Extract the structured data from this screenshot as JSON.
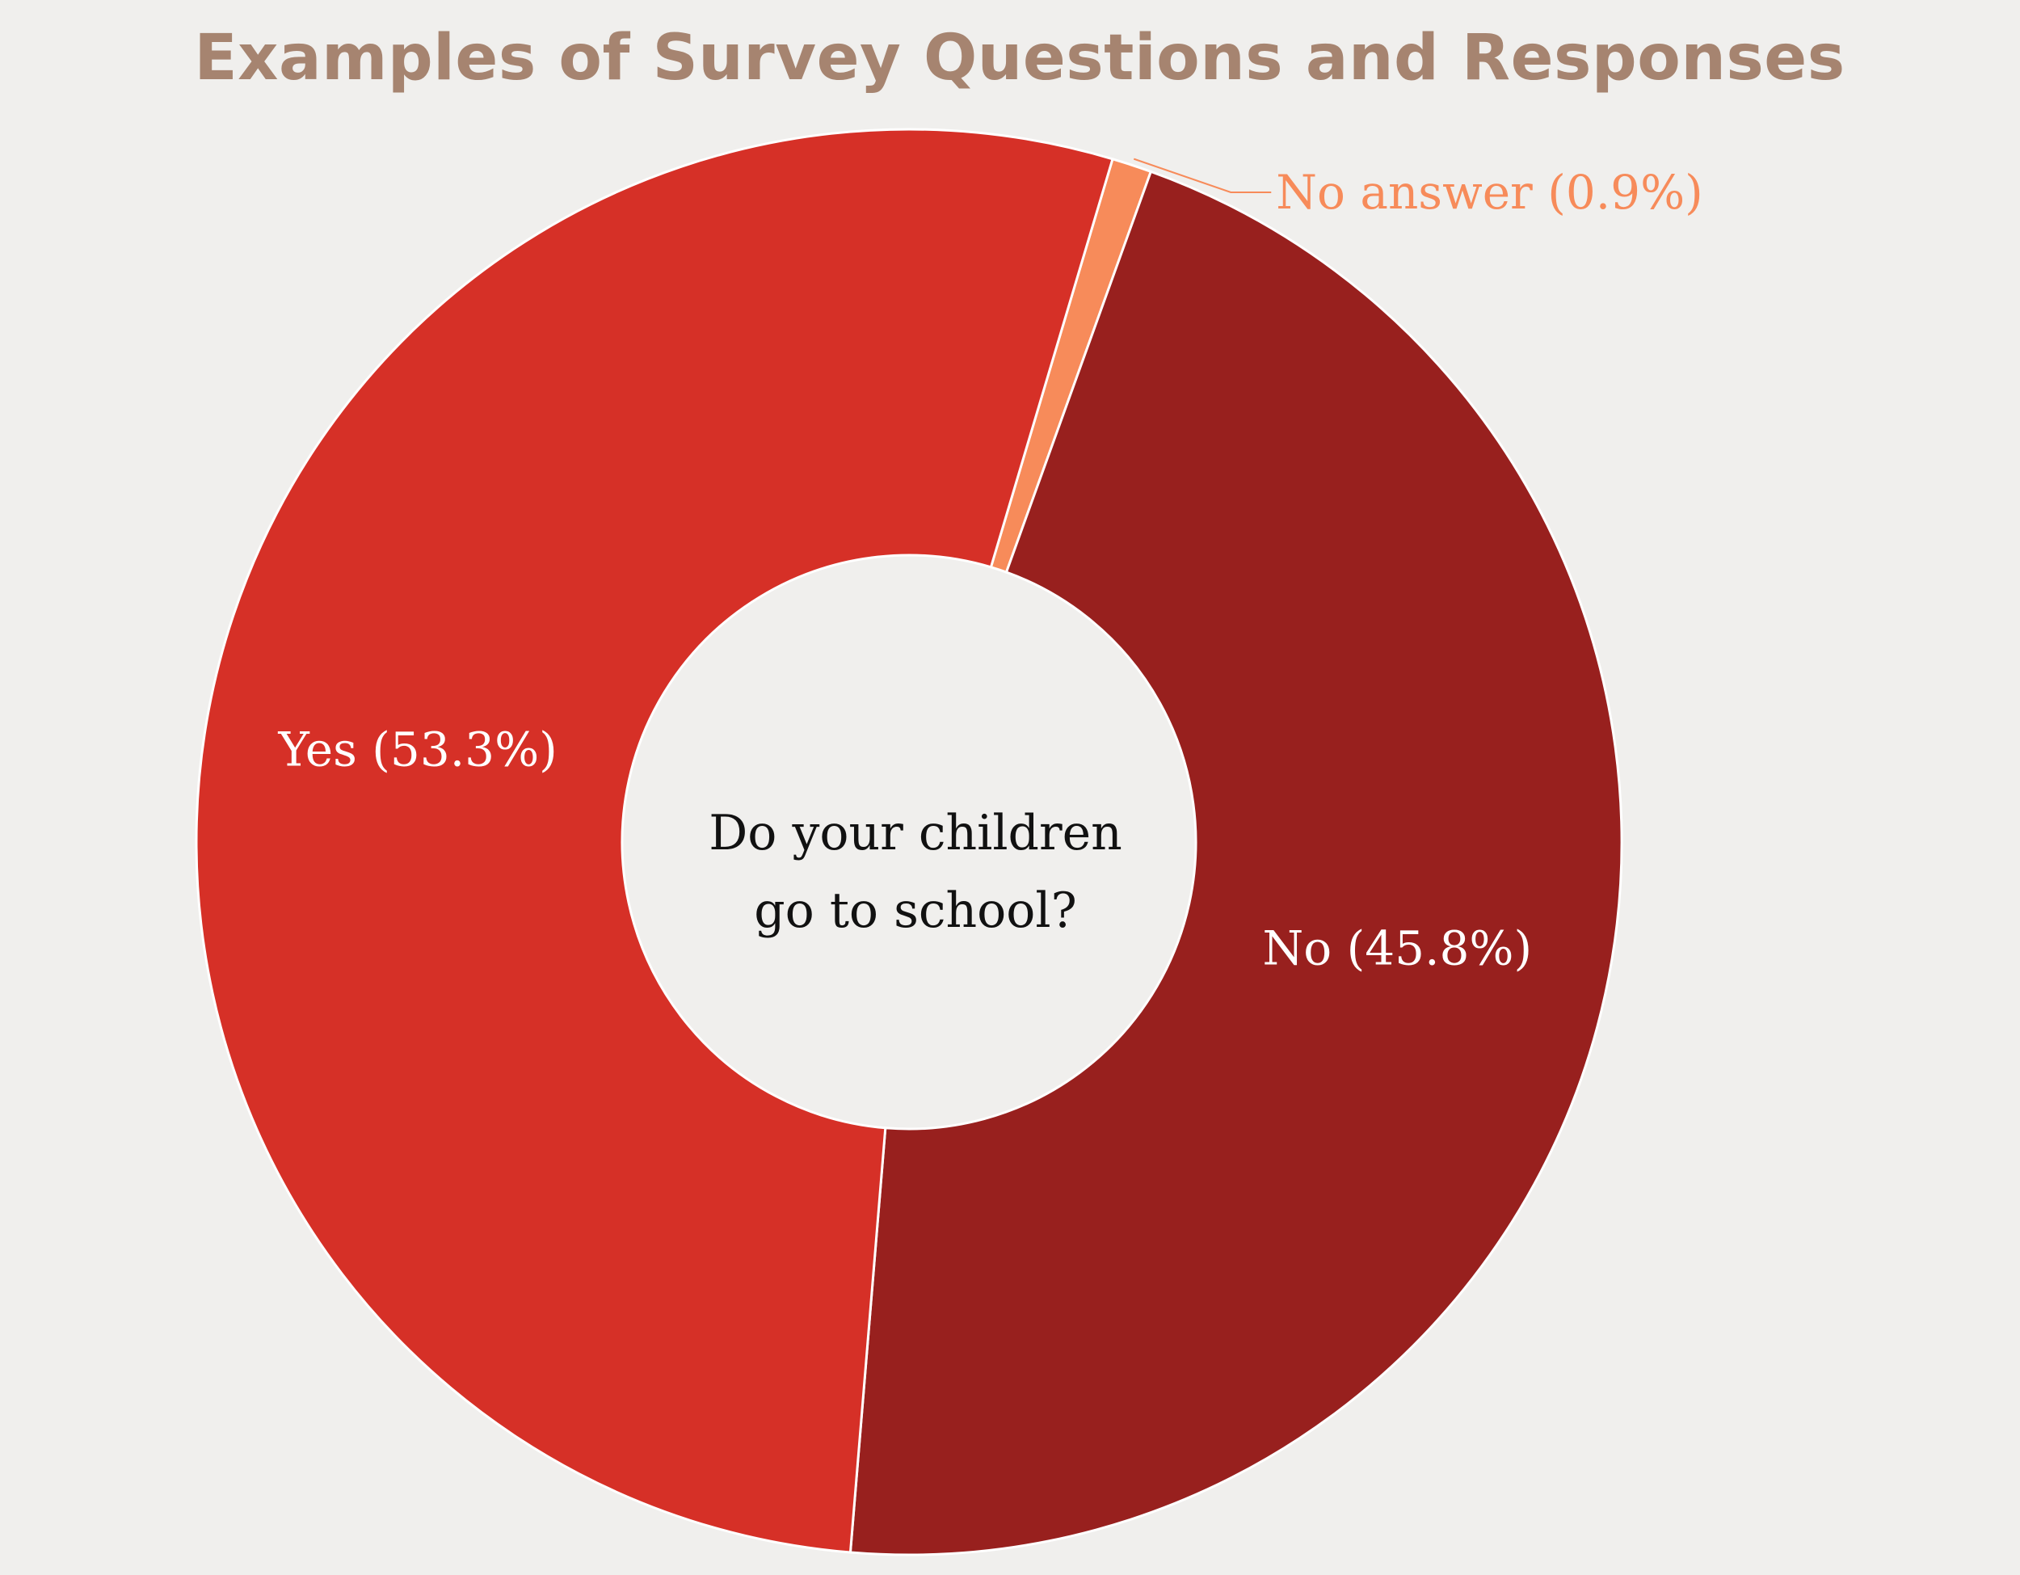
{
  "chart_data": {
    "type": "pie",
    "title": "Examples of Survey Questions and Responses",
    "center_question": [
      "Do your children",
      "go to school?"
    ],
    "slices": [
      {
        "category": "No answer",
        "value": 0.9,
        "label": "No answer (0.9%)",
        "color": "#f78b5a"
      },
      {
        "category": "No",
        "value": 45.8,
        "label": "No (45.8%)",
        "color": "#98201e"
      },
      {
        "category": "Yes",
        "value": 53.3,
        "label": "Yes (53.3%)",
        "color": "#d63027"
      }
    ],
    "colors": {
      "background": "#f0efed",
      "title": "#a68470",
      "center_text": "#111111",
      "slice_label": "#ffffff",
      "slice_border": "#ffffff"
    }
  }
}
